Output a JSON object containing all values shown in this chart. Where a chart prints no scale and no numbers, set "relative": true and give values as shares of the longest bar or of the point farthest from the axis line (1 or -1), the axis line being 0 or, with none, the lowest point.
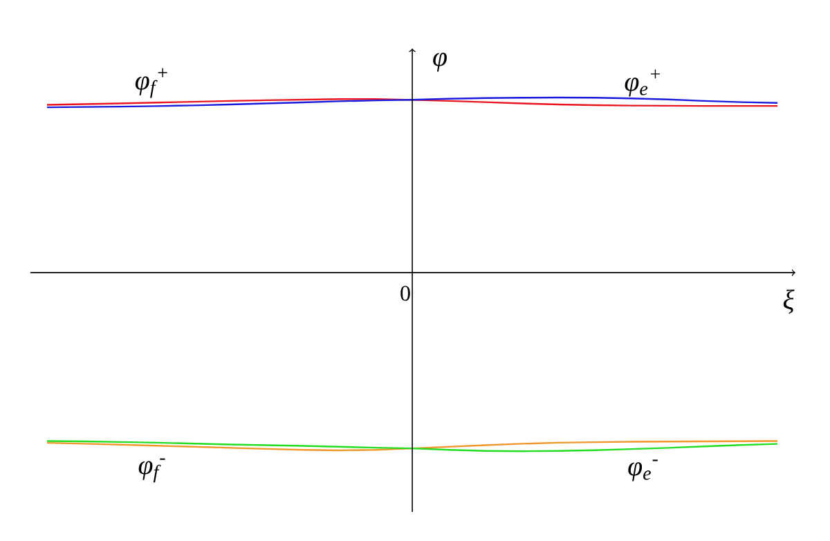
{
  "chart_data": {
    "type": "line",
    "relative": true,
    "xlabel": "ξ",
    "ylabel": "φ",
    "categories": [
      null,
      null,
      null,
      null,
      null,
      null,
      null,
      null,
      null,
      null,
      null,
      null,
      null,
      null,
      null,
      null,
      null,
      null,
      null,
      null,
      null
    ],
    "series": [
      {
        "color": "#e8141e",
        "values": [
          0.94,
          0.944,
          0.948,
          0.953,
          0.957,
          0.962,
          0.966,
          0.969,
          0.972,
          0.972,
          0.968,
          0.962,
          0.955,
          0.948,
          0.942,
          0.938,
          0.936,
          0.935,
          0.934,
          0.934,
          0.934
        ]
      },
      {
        "color": "#1a1adc",
        "values": [
          0.926,
          0.928,
          0.93,
          0.933,
          0.937,
          0.942,
          0.948,
          0.954,
          0.96,
          0.965,
          0.968,
          0.974,
          0.978,
          0.98,
          0.981,
          0.98,
          0.976,
          0.97,
          0.962,
          0.955,
          0.951
        ]
      },
      {
        "color": "#f0962a",
        "values": [
          -0.953,
          -0.958,
          -0.963,
          -0.969,
          -0.975,
          -0.981,
          -0.987,
          -0.992,
          -0.995,
          -0.992,
          -0.984,
          -0.975,
          -0.966,
          -0.958,
          -0.952,
          -0.949,
          -0.947,
          -0.946,
          -0.945,
          -0.944,
          -0.943
        ]
      },
      {
        "color": "#22dd22",
        "values": [
          -0.943,
          -0.945,
          -0.948,
          -0.952,
          -0.957,
          -0.962,
          -0.966,
          -0.97,
          -0.975,
          -0.98,
          -0.984,
          -0.992,
          -0.998,
          -1.0,
          -0.998,
          -0.994,
          -0.988,
          -0.981,
          -0.973,
          -0.965,
          -0.959
        ]
      }
    ],
    "annotations": [
      "0",
      "φ$_{f}$$^{+}$",
      "φ$_{e}$$^{+}$",
      "φ$_{f}$$^{-}$",
      "φ$_{e}$$^{-}$"
    ]
  }
}
